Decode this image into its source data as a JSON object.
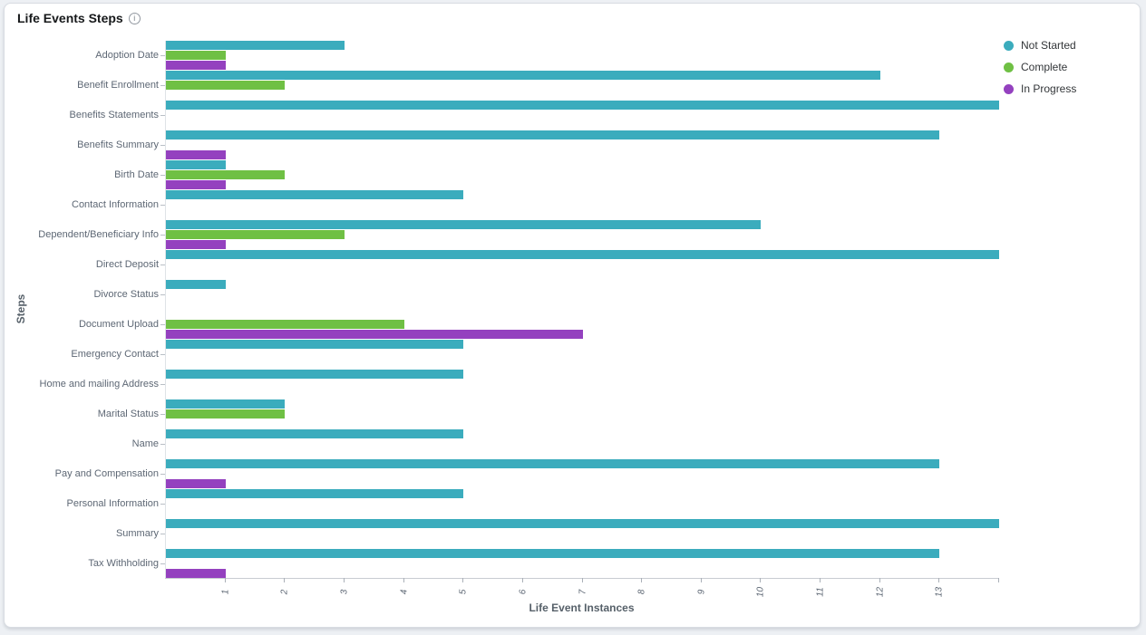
{
  "card": {
    "title": "Life Events Steps",
    "info_glyph": "i"
  },
  "legend": {
    "position": "top-right",
    "items": [
      {
        "label": "Not Started",
        "color": "#3BACBD"
      },
      {
        "label": "Complete",
        "color": "#6FC044"
      },
      {
        "label": "In Progress",
        "color": "#9441BF"
      }
    ]
  },
  "chart_data": {
    "type": "bar",
    "orientation": "horizontal",
    "title": "Life Events Steps",
    "xlabel": "Life Event Instances",
    "ylabel": "Steps",
    "xlim": [
      0,
      14
    ],
    "x_ticks": [
      1,
      2,
      3,
      4,
      5,
      6,
      7,
      8,
      9,
      10,
      11,
      12,
      13
    ],
    "grid": false,
    "legend_position": "top-right",
    "categories": [
      "Adoption Date",
      "Benefit Enrollment",
      "Benefits Statements",
      "Benefits Summary",
      "Birth Date",
      "Contact Information",
      "Dependent/Beneficiary Info",
      "Direct Deposit",
      "Divorce Status",
      "Document Upload",
      "Emergency Contact",
      "Home and mailing Address",
      "Marital Status",
      "Name",
      "Pay and Compensation",
      "Personal Information",
      "Summary",
      "Tax Withholding"
    ],
    "series": [
      {
        "name": "Not Started",
        "color": "#3BACBD",
        "values": [
          3,
          12,
          14,
          13,
          1,
          5,
          10,
          14,
          1,
          0,
          5,
          5,
          2,
          5,
          13,
          5,
          14,
          13
        ]
      },
      {
        "name": "Complete",
        "color": "#6FC044",
        "values": [
          1,
          2,
          0,
          0,
          2,
          0,
          3,
          0,
          0,
          4,
          0,
          0,
          2,
          0,
          0,
          0,
          0,
          0
        ]
      },
      {
        "name": "In Progress",
        "color": "#9441BF",
        "values": [
          1,
          0,
          0,
          1,
          1,
          0,
          1,
          0,
          0,
          7,
          0,
          0,
          0,
          0,
          1,
          0,
          0,
          1
        ]
      }
    ]
  }
}
